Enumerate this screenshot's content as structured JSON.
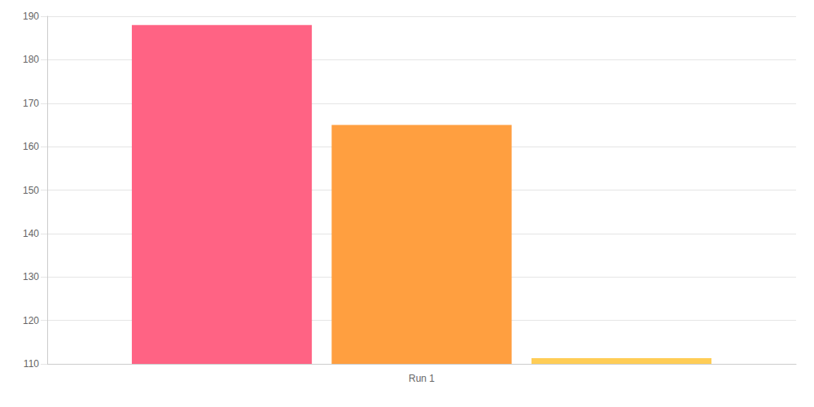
{
  "chart_data": {
    "type": "bar",
    "categories": [
      "Run 1"
    ],
    "series": [
      {
        "color": "#ff6384",
        "values": [
          188
        ]
      },
      {
        "color": "#ff9f40",
        "values": [
          165
        ]
      },
      {
        "color": "#ffcd56",
        "values": [
          111.3
        ]
      }
    ],
    "ylim": [
      110,
      190
    ],
    "yticks": [
      110,
      120,
      130,
      140,
      150,
      160,
      170,
      180,
      190
    ],
    "grid": true
  }
}
